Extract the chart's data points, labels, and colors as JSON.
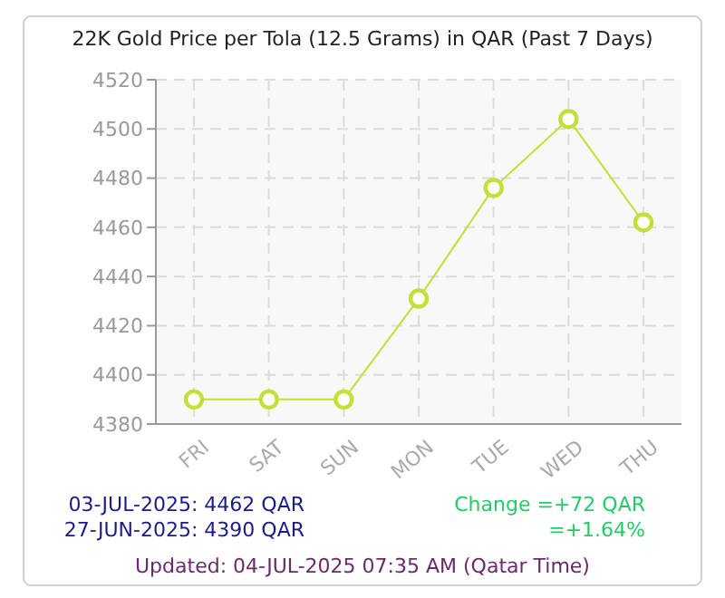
{
  "chart_data": {
    "type": "line",
    "title": "22K Gold Price per Tola (12.5 Grams) in QAR (Past 7 Days)",
    "categories": [
      "FRI",
      "SAT",
      "SUN",
      "MON",
      "TUE",
      "WED",
      "THU"
    ],
    "series": [
      {
        "color": "#c3e03a",
        "values": [
          4390,
          4390,
          4390,
          4431,
          4476,
          4504,
          4462
        ]
      }
    ],
    "ylim": [
      4380,
      4520
    ],
    "yticks": [
      4380,
      4400,
      4420,
      4440,
      4460,
      4480,
      4500,
      4520
    ],
    "grid": true,
    "marker": "circle",
    "line_style": "solid",
    "annotations": [
      "03-JUL-2025: 4462 QAR",
      "27-JUN-2025: 4390 QAR",
      "Change =+72 QAR",
      "=+1.64%",
      "Updated: 04-JUL-2025 07:35 AM (Qatar Time)"
    ]
  }
}
